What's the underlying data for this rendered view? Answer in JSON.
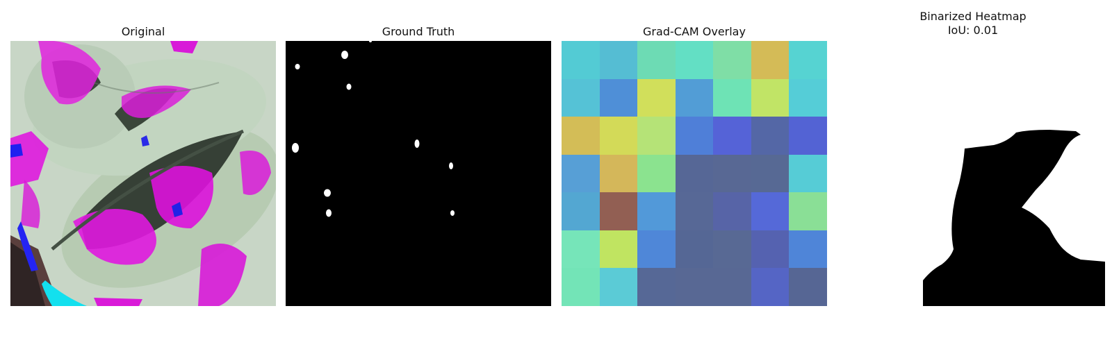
{
  "panels": {
    "original": {
      "title": "Original"
    },
    "ground_truth": {
      "title": "Ground Truth"
    },
    "gradcam": {
      "title": "Grad-CAM Overlay",
      "cells": [
        [
          "#53cbd4",
          "#55bdd3",
          "#6ddbb4",
          "#63dfc4",
          "#7fdea6",
          "#d4bb57",
          "#56d3d2"
        ],
        [
          "#55c2d6",
          "#4f8fd7",
          "#d1df5b",
          "#529dd6",
          "#6ee3b5",
          "#c1e466",
          "#55cdd7"
        ],
        [
          "#d3bd57",
          "#d3da58",
          "#b5e377",
          "#4f7fd8",
          "#5563d7",
          "#5467a6",
          "#5363d4"
        ],
        [
          "#579fd6",
          "#d4b75a",
          "#8be38f",
          "#566796",
          "#586894",
          "#576994",
          "#56ccd6"
        ],
        [
          "#53a7d2",
          "#925f53",
          "#5299d9",
          "#576896",
          "#5764a7",
          "#5569d8",
          "#8adf96"
        ],
        [
          "#76e5b9",
          "#c0e461",
          "#4f87d8",
          "#556795",
          "#586994",
          "#5562b0",
          "#4f85d8"
        ],
        [
          "#73e4b7",
          "#5bcbd6",
          "#566896",
          "#586894",
          "#586894",
          "#5565c5",
          "#566694"
        ]
      ]
    },
    "binarized": {
      "title_line1": "Binarized Heatmap",
      "title_line2": "IoU: 0.01"
    }
  }
}
